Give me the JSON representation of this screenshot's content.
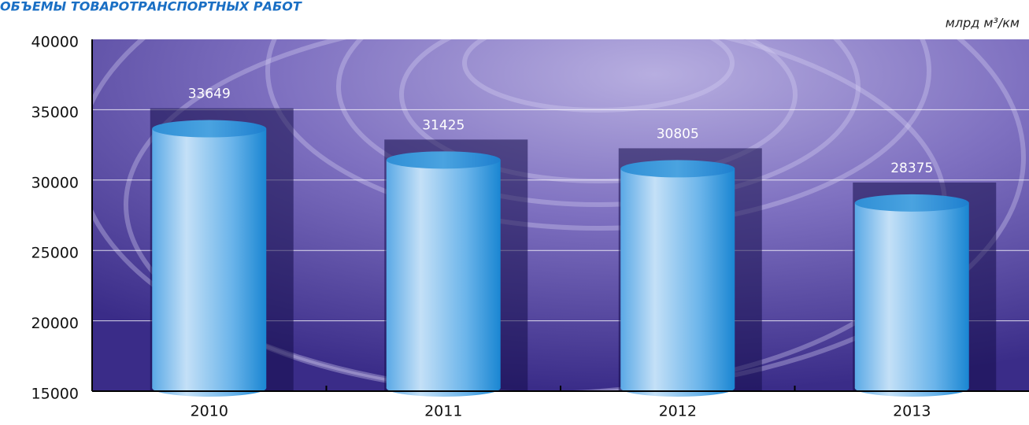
{
  "chart_data": {
    "type": "bar",
    "title": "ОБЪЕМЫ ТОВАРОТРАНСПОРТНЫХ РАБОТ",
    "unit_label": "млрд м³/км",
    "categories": [
      "2010",
      "2011",
      "2012",
      "2013"
    ],
    "values": [
      33649,
      31425,
      30805,
      28375
    ],
    "color": "#4aa3e0",
    "ylim": [
      15000,
      40000
    ],
    "yticks": [
      15000,
      20000,
      25000,
      30000,
      35000,
      40000
    ],
    "grid": true
  }
}
